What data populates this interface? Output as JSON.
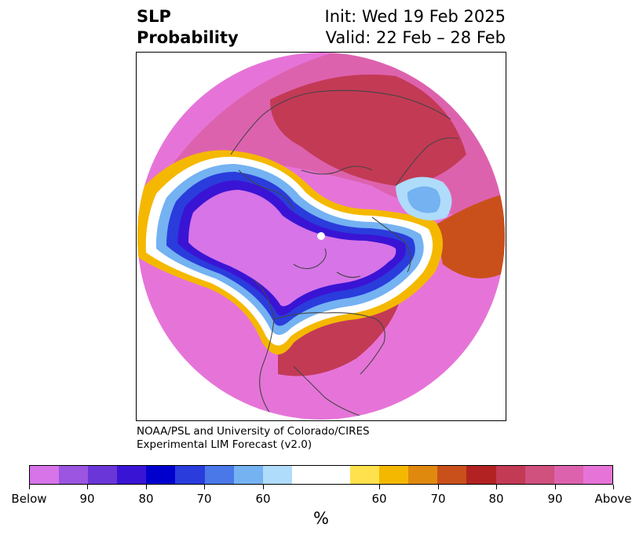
{
  "title": {
    "left_line1": "SLP",
    "left_line2": "Probability",
    "right_line1": "Init: Wed 19 Feb 2025",
    "right_line2": "Valid: 22 Feb – 28 Feb"
  },
  "credit": {
    "line1": "NOAA/PSL and University of Colorado/CIRES",
    "line2": "Experimental LIM Forecast (v2.0)"
  },
  "colorbar": {
    "colors": [
      "#d674e8",
      "#9b55e0",
      "#6a36d8",
      "#3a14d4",
      "#0000cd",
      "#2a3cdc",
      "#4a78e8",
      "#74b2f2",
      "#afdcfa",
      "#ffffff",
      "#ffffff",
      "#ffe14d",
      "#f5b800",
      "#e0890f",
      "#c9501a",
      "#b22222",
      "#c33a55",
      "#d0507e",
      "#dd62ae",
      "#e674d8"
    ],
    "labels": [
      "Below",
      "90",
      "80",
      "70",
      "60",
      "",
      "60",
      "70",
      "80",
      "90",
      "Above"
    ],
    "unit": "%"
  },
  "map": {
    "colors": {
      "above_high": "#e674d8",
      "above_90": "#dd62ae",
      "above_85": "#d0507e",
      "above_80": "#c33a55",
      "above_75": "#b22222",
      "above_70": "#c9501a",
      "above_65": "#e0890f",
      "above_60": "#f5b800",
      "above_55": "#ffe14d",
      "neutral": "#ffffff",
      "below_55": "#afdcfa",
      "below_60": "#74b2f2",
      "below_65": "#4a78e8",
      "below_70": "#2a3cdc",
      "below_75": "#0000cd",
      "below_80": "#3a14d4",
      "below_85": "#6a36d8",
      "below_high": "#d674e8",
      "coastline": "#444444"
    }
  }
}
